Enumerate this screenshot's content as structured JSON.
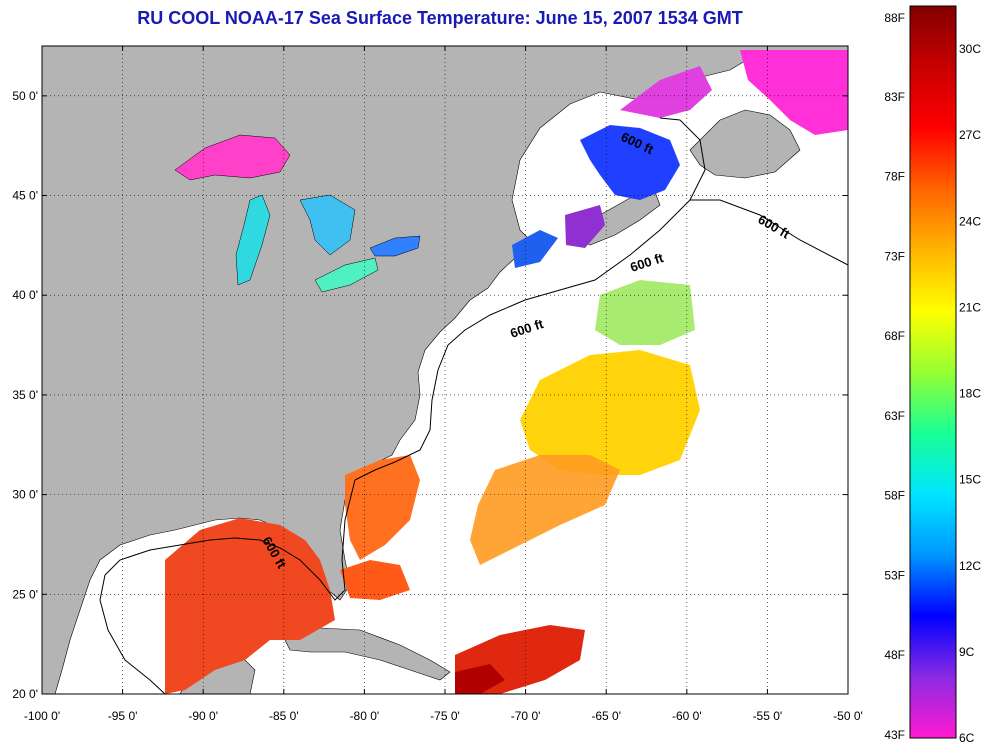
{
  "title": "RU COOL  NOAA-17  Sea Surface Temperature:  June 15, 2007 1534 GMT",
  "map": {
    "lon_ticks": [
      "-100 0'",
      "-95 0'",
      "-90 0'",
      "-85 0'",
      "-80 0'",
      "-75 0'",
      "-70 0'",
      "-65 0'",
      "-60 0'",
      "-55 0'",
      "-50 0'"
    ],
    "lat_ticks": [
      "50 0'",
      "45 0'",
      "40 0'",
      "35 0'",
      "30 0'",
      "25 0'",
      "20 0'"
    ],
    "lon_range": [
      -100,
      -50
    ],
    "lat_range": [
      20,
      52.5
    ],
    "grid": true,
    "isobath_labels": [
      "600 ft",
      "600 ft",
      "600 ft",
      "600 ft",
      "600 ft"
    ],
    "colors": {
      "land": "#b4b4b4",
      "no_data": "#ffffff",
      "title": "#1a1ab4"
    }
  },
  "colorbar": {
    "fahrenheit_labels": [
      "88F",
      "83F",
      "78F",
      "73F",
      "68F",
      "63F",
      "58F",
      "53F",
      "48F",
      "43F"
    ],
    "celsius_labels": [
      "30C",
      "27C",
      "24C",
      "21C",
      "18C",
      "15C",
      "12C",
      "9C",
      "6C"
    ],
    "range_celsius": [
      6,
      31.5
    ],
    "colors_bottom_to_top": [
      "#ff1ad2",
      "#8a2be2",
      "#0000ff",
      "#0096ff",
      "#00e6ff",
      "#19ff96",
      "#96ff32",
      "#ffff00",
      "#ffb400",
      "#ff6400",
      "#ff0000",
      "#c80000",
      "#820000"
    ]
  }
}
